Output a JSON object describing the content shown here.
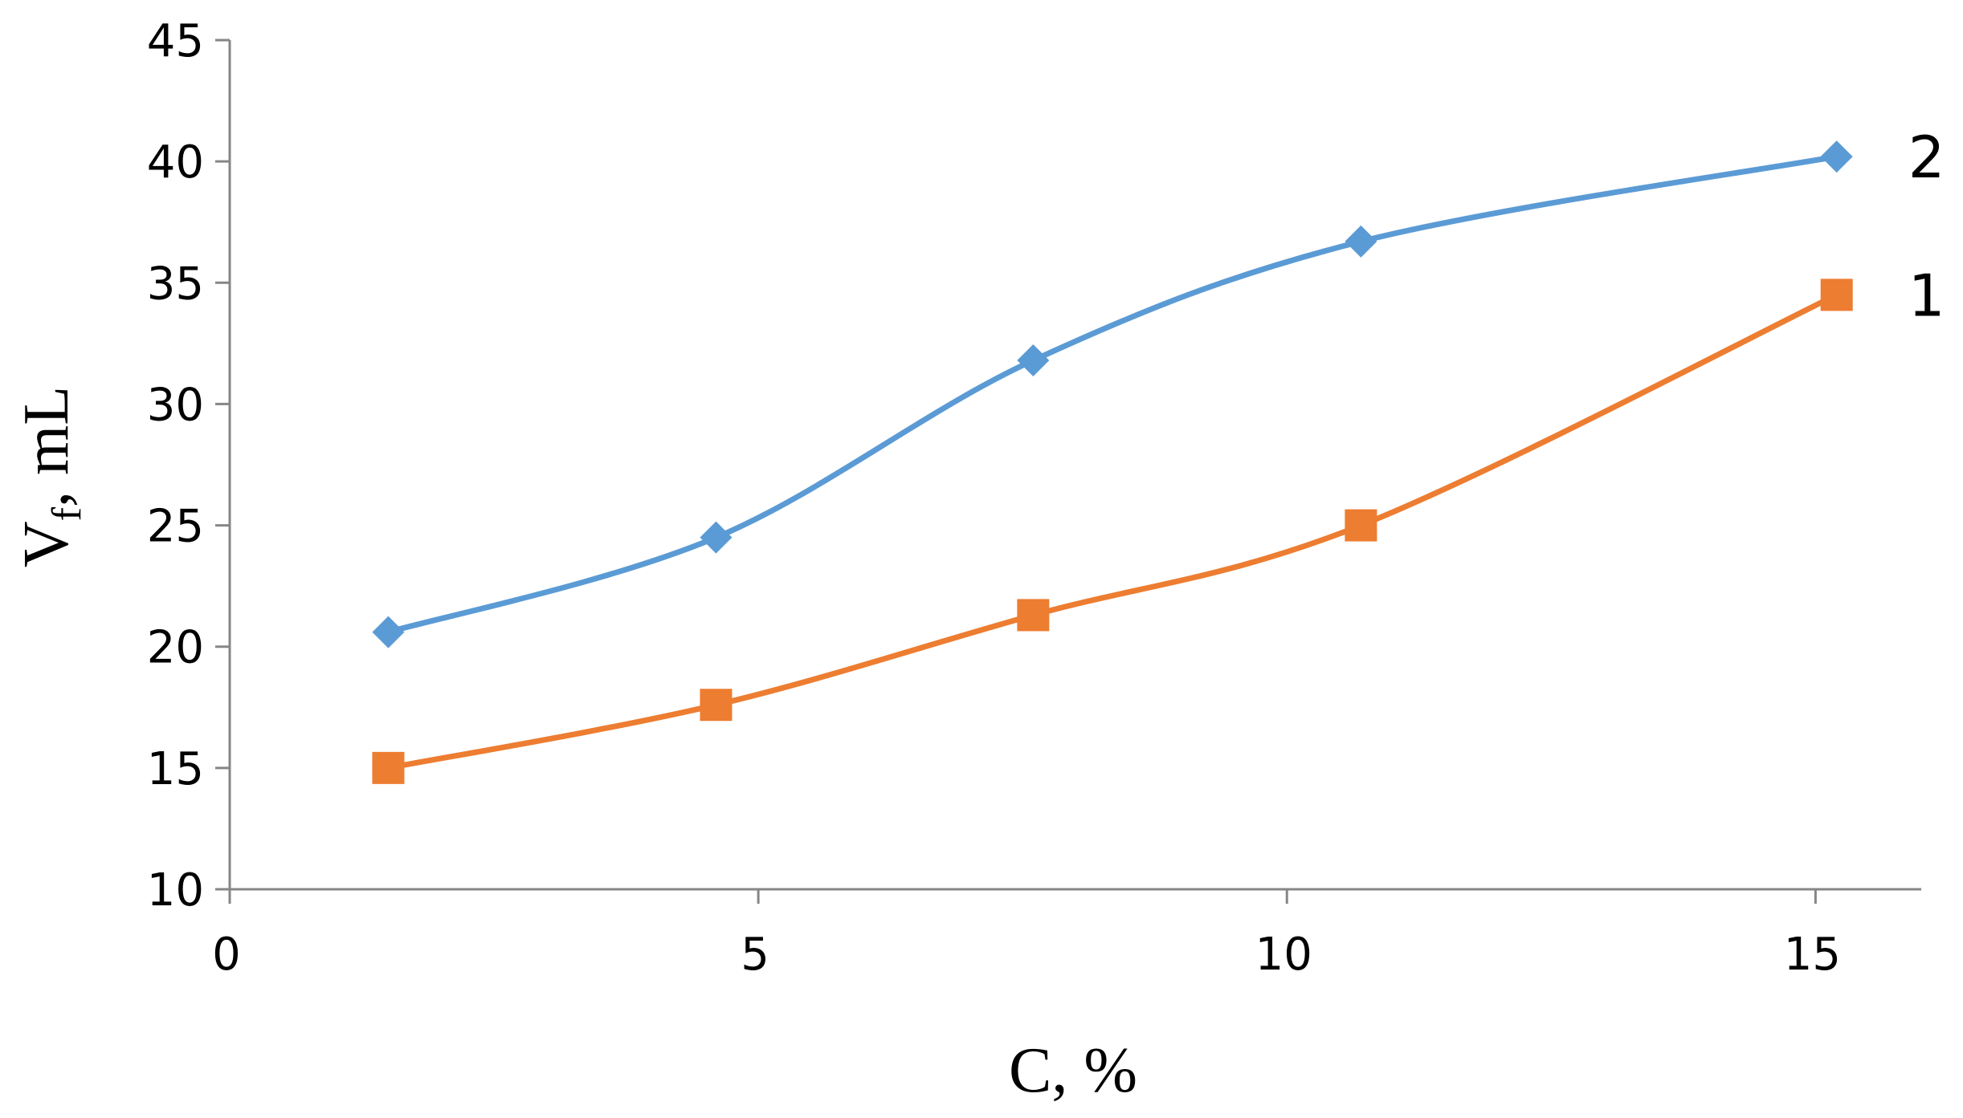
{
  "chart_data": {
    "type": "line",
    "xlabel": "C, %",
    "ylabel_main": "V",
    "ylabel_sub": "f",
    "ylabel_rest": ", mL",
    "xlim": [
      0,
      16
    ],
    "ylim": [
      10,
      45
    ],
    "xticks": [
      0,
      5,
      10,
      15
    ],
    "yticks": [
      10,
      15,
      20,
      25,
      30,
      35,
      40,
      45
    ],
    "grid": false,
    "series": [
      {
        "name": "1",
        "marker": "square",
        "color": "#ED7D31",
        "points": [
          [
            1.5,
            15.0
          ],
          [
            4.6,
            17.6
          ],
          [
            7.6,
            21.3
          ],
          [
            10.7,
            25.0
          ],
          [
            15.2,
            34.5
          ]
        ]
      },
      {
        "name": "2",
        "marker": "diamond",
        "color": "#5B9BD5",
        "points": [
          [
            1.5,
            20.6
          ],
          [
            4.6,
            24.5
          ],
          [
            7.6,
            31.8
          ],
          [
            10.7,
            36.7
          ],
          [
            15.2,
            40.2
          ]
        ]
      }
    ]
  }
}
